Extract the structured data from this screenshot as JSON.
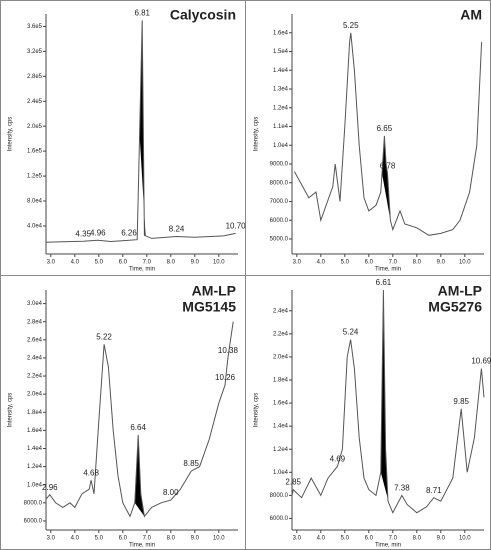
{
  "chart_data": [
    {
      "type": "line",
      "title": [
        "Calycosin"
      ],
      "ylabel": "Intensity, cps",
      "xlabel": "Time, min",
      "color": "#555555",
      "x": [
        2.8,
        3.5,
        4.35,
        4.96,
        5.5,
        6.26,
        6.6,
        6.81,
        6.9,
        7.2,
        8.24,
        9.0,
        10.2,
        10.7
      ],
      "values": [
        14000,
        14500,
        15500,
        17000,
        15000,
        17000,
        18000,
        370000,
        25000,
        20000,
        23000,
        22000,
        24000,
        28000
      ],
      "xlim": [
        2.8,
        10.8
      ],
      "ylim": [
        -5000,
        380000
      ],
      "xticks": [
        {
          "value": 3,
          "label": "3.0"
        },
        {
          "value": 4,
          "label": "4.0"
        },
        {
          "value": 5,
          "label": "5.0"
        },
        {
          "value": 6,
          "label": "6.0"
        },
        {
          "value": 7,
          "label": "7.0"
        },
        {
          "value": 8,
          "label": "8.0"
        },
        {
          "value": 9,
          "label": "9.0"
        },
        {
          "value": 10,
          "label": "10.0"
        }
      ],
      "yticks": [
        {
          "value": 40000,
          "label": "4.0e4"
        },
        {
          "value": 80000,
          "label": "8.0e4"
        },
        {
          "value": 120000,
          "label": "1.2e5"
        },
        {
          "value": 160000,
          "label": "1.6e5"
        },
        {
          "value": 200000,
          "label": "2.0e5"
        },
        {
          "value": 240000,
          "label": "2.4e5"
        },
        {
          "value": 280000,
          "label": "2.8e5"
        },
        {
          "value": 320000,
          "label": "3.2e5"
        },
        {
          "value": 360000,
          "label": "3.6e5"
        }
      ],
      "peaks": [
        4.35,
        4.96,
        6.26,
        6.81,
        8.24,
        {
          "value": 10.7,
          "label": "10.70"
        }
      ],
      "fill_range": [
        6.7,
        6.95
      ]
    },
    {
      "type": "line",
      "title": [
        "AM"
      ],
      "ylabel": "Intensity, cps",
      "xlabel": "Time, min",
      "color": "#555555",
      "x": [
        2.9,
        3.5,
        3.8,
        4.0,
        4.5,
        4.6,
        4.8,
        5.0,
        5.2,
        5.25,
        5.4,
        5.6,
        5.8,
        6.0,
        6.3,
        6.5,
        6.65,
        6.72,
        6.78,
        6.9,
        7.0,
        7.3,
        7.5,
        8.0,
        8.5,
        9.0,
        9.5,
        9.8,
        10.2,
        10.5,
        10.7
      ],
      "values": [
        8600,
        7200,
        7500,
        6000,
        7800,
        9000,
        7000,
        11000,
        15500,
        16000,
        14000,
        10000,
        7200,
        6500,
        6800,
        7500,
        10500,
        9000,
        8500,
        6000,
        5500,
        6500,
        5800,
        5600,
        5200,
        5300,
        5500,
        6000,
        7500,
        10000,
        15500
      ],
      "xlim": [
        2.8,
        10.8
      ],
      "ylim": [
        4200,
        17000
      ],
      "xticks": [
        {
          "value": 3,
          "label": "3.0"
        },
        {
          "value": 4,
          "label": "4.0"
        },
        {
          "value": 5,
          "label": "5.0"
        },
        {
          "value": 6,
          "label": "6.0"
        },
        {
          "value": 7,
          "label": "7.0"
        },
        {
          "value": 8,
          "label": "8.0"
        },
        {
          "value": 9,
          "label": "9.0"
        },
        {
          "value": 10,
          "label": "10.0"
        }
      ],
      "yticks": [
        {
          "value": 5000,
          "label": "5000.0"
        },
        {
          "value": 6000,
          "label": "6000.0"
        },
        {
          "value": 7000,
          "label": "7000.0"
        },
        {
          "value": 8000,
          "label": "8000.0"
        },
        {
          "value": 9000,
          "label": "9000.0"
        },
        {
          "value": 10000,
          "label": "1.0e4"
        },
        {
          "value": 11000,
          "label": "1.1e4"
        },
        {
          "value": 12000,
          "label": "1.2e4"
        },
        {
          "value": 13000,
          "label": "1.3e4"
        },
        {
          "value": 14000,
          "label": "1.4e4"
        },
        {
          "value": 15000,
          "label": "1.5e4"
        },
        {
          "value": 16000,
          "label": "1.6e4"
        }
      ],
      "peaks": [
        5.25,
        6.65,
        6.78
      ],
      "fill_range": [
        6.55,
        6.9
      ]
    },
    {
      "type": "line",
      "title": [
        "AM-LP",
        "MG5145"
      ],
      "ylabel": "Intensity, cps",
      "xlabel": "Time, min",
      "color": "#555555",
      "x": [
        2.8,
        2.96,
        3.2,
        3.5,
        3.8,
        4.0,
        4.3,
        4.6,
        4.68,
        4.8,
        5.0,
        5.22,
        5.4,
        5.6,
        5.8,
        6.0,
        6.3,
        6.5,
        6.64,
        6.75,
        6.9,
        7.2,
        7.6,
        8.0,
        8.4,
        8.85,
        9.2,
        9.6,
        10.0,
        10.26,
        10.38,
        10.6
      ],
      "values": [
        8400,
        8900,
        8000,
        7500,
        8000,
        7500,
        9000,
        9500,
        10500,
        9000,
        17000,
        25500,
        23000,
        16000,
        11000,
        8000,
        6500,
        8000,
        15500,
        9000,
        6500,
        7500,
        8000,
        8300,
        9500,
        11500,
        12000,
        15000,
        19000,
        21000,
        24000,
        28000
      ],
      "xlim": [
        2.8,
        10.8
      ],
      "ylim": [
        5000,
        31500
      ],
      "xticks": [
        {
          "value": 3,
          "label": "3.0"
        },
        {
          "value": 4,
          "label": "4.0"
        },
        {
          "value": 5,
          "label": "5.0"
        },
        {
          "value": 6,
          "label": "6.0"
        },
        {
          "value": 7,
          "label": "7.0"
        },
        {
          "value": 8,
          "label": "8.0"
        },
        {
          "value": 9,
          "label": "9.0"
        },
        {
          "value": 10,
          "label": "10.0"
        }
      ],
      "yticks": [
        {
          "value": 6000,
          "label": "6000.0"
        },
        {
          "value": 8000,
          "label": "8000.0"
        },
        {
          "value": 10000,
          "label": "1.0e4"
        },
        {
          "value": 12000,
          "label": "1.2e4"
        },
        {
          "value": 14000,
          "label": "1.4e4"
        },
        {
          "value": 16000,
          "label": "1.6e4"
        },
        {
          "value": 18000,
          "label": "1.8e4"
        },
        {
          "value": 20000,
          "label": "2.0e4"
        },
        {
          "value": 22000,
          "label": "2.2e4"
        },
        {
          "value": 24000,
          "label": "2.4e4"
        },
        {
          "value": 26000,
          "label": "2.6e4"
        },
        {
          "value": 28000,
          "label": "2.8e4"
        },
        {
          "value": 30000,
          "label": "3.0e4"
        }
      ],
      "peaks": [
        2.96,
        4.68,
        5.22,
        6.64,
        {
          "value": 8,
          "label": "8.00"
        },
        8.85,
        10.26,
        10.38
      ],
      "fill_range": [
        6.5,
        6.9
      ]
    },
    {
      "type": "line",
      "title": [
        "AM-LP",
        "MG5276"
      ],
      "ylabel": "Intensity, cps",
      "xlabel": "Time, min",
      "color": "#555555",
      "x": [
        2.8,
        2.85,
        3.2,
        3.6,
        4.0,
        4.3,
        4.69,
        4.9,
        5.1,
        5.24,
        5.4,
        5.6,
        5.8,
        6.0,
        6.3,
        6.5,
        6.61,
        6.7,
        6.8,
        7.0,
        7.38,
        7.6,
        8.0,
        8.4,
        8.71,
        9.0,
        9.5,
        9.85,
        10.1,
        10.4,
        10.69,
        10.8
      ],
      "values": [
        8000,
        8500,
        7800,
        9500,
        8000,
        9500,
        10500,
        12000,
        20000,
        21500,
        19000,
        13000,
        9500,
        8500,
        8000,
        10000,
        25800,
        12000,
        7500,
        6500,
        8000,
        7200,
        6500,
        7000,
        7800,
        7500,
        9500,
        15500,
        10000,
        13000,
        19000,
        16500
      ],
      "xlim": [
        2.8,
        10.8
      ],
      "ylim": [
        5000,
        25800
      ],
      "xticks": [
        {
          "value": 3,
          "label": "3.0"
        },
        {
          "value": 4,
          "label": "4.0"
        },
        {
          "value": 5,
          "label": "5.0"
        },
        {
          "value": 6,
          "label": "6.0"
        },
        {
          "value": 7,
          "label": "7.0"
        },
        {
          "value": 8,
          "label": "8.0"
        },
        {
          "value": 9,
          "label": "9.0"
        },
        {
          "value": 10,
          "label": "10.0"
        }
      ],
      "yticks": [
        {
          "value": 6000,
          "label": "6000.0"
        },
        {
          "value": 8000,
          "label": "8000.0"
        },
        {
          "value": 10000,
          "label": "1.0e4"
        },
        {
          "value": 12000,
          "label": "1.2e4"
        },
        {
          "value": 14000,
          "label": "1.4e4"
        },
        {
          "value": 16000,
          "label": "1.6e4"
        },
        {
          "value": 18000,
          "label": "1.8e4"
        },
        {
          "value": 20000,
          "label": "2.0e4"
        },
        {
          "value": 22000,
          "label": "2.2e4"
        },
        {
          "value": 24000,
          "label": "2.4e4"
        }
      ],
      "peaks": [
        2.85,
        4.69,
        5.24,
        6.61,
        7.38,
        8.71,
        9.85,
        10.69
      ],
      "fill_range": [
        6.5,
        6.85
      ]
    }
  ]
}
